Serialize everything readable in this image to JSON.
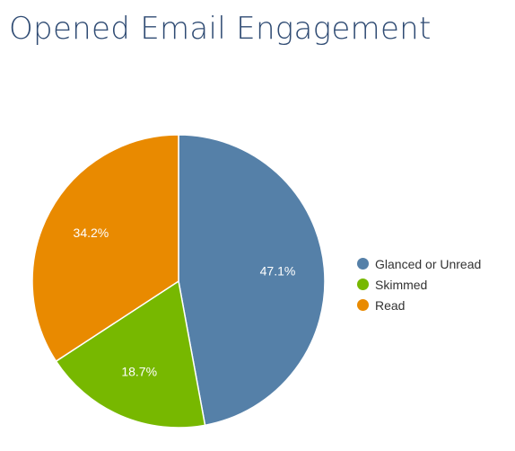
{
  "title": "Opened Email Engagement",
  "chart_data": {
    "type": "pie",
    "title": "Opened Email Engagement",
    "slices": [
      {
        "label": "Glanced or Unread",
        "value": 47.1,
        "display": "47.1%",
        "color": "#5580a8"
      },
      {
        "label": "Skimmed",
        "value": 18.7,
        "display": "18.7%",
        "color": "#77b800"
      },
      {
        "label": "Read",
        "value": 34.2,
        "display": "34.2%",
        "color": "#e98a00"
      }
    ],
    "legend_position": "right"
  }
}
